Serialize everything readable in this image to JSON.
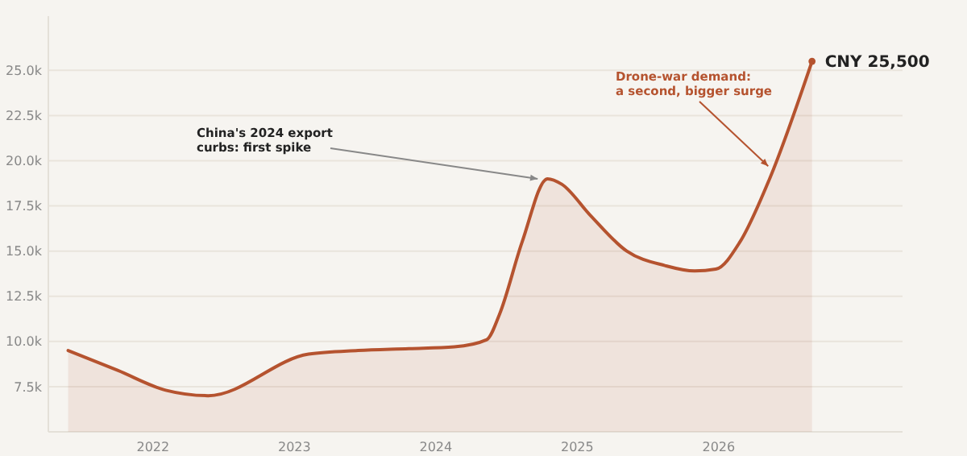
{
  "chart_data": {
    "type": "area",
    "color": "#b5532f",
    "x": [
      2021.4,
      2021.75,
      2022.09,
      2022.39,
      2023.1,
      2023.45,
      2023.81,
      2024.13,
      2024.36,
      2024.45,
      2024.61,
      2024.79,
      2024.89,
      2025.09,
      2025.35,
      2025.62,
      2025.83,
      2025.98,
      2026.15,
      2026.36,
      2026.66
    ],
    "values": [
      9500,
      8400,
      7300,
      7000,
      9300,
      9500,
      9600,
      9700,
      10100,
      11500,
      15500,
      19000,
      18700,
      17000,
      15000,
      14200,
      13900,
      14000,
      15500,
      19000,
      25500
    ],
    "xlim": [
      2021.26,
      2027.3
    ],
    "xticks": [
      2022,
      2023,
      2024,
      2025,
      2026
    ],
    "ylim": [
      5000,
      28000
    ],
    "yticks": [
      {
        "value": 7500,
        "label": "7.5k"
      },
      {
        "value": 10000,
        "label": "10.0k"
      },
      {
        "value": 12500,
        "label": "12.5k"
      },
      {
        "value": 15000,
        "label": "15.0k"
      },
      {
        "value": 17500,
        "label": "17.5k"
      },
      {
        "value": 20000,
        "label": "20.0k"
      },
      {
        "value": 22500,
        "label": "22.5k"
      },
      {
        "value": 25000,
        "label": "25.0k"
      }
    ],
    "grid": "y",
    "annotations": [
      {
        "text": "China's 2024 export\ncurbs: first spike",
        "x": 2024.72,
        "y": 19000
      },
      {
        "text": "Drone-war demand:\na second, bigger surge",
        "x": 2026.35,
        "y": 19700
      },
      {
        "text": "CNY 25,500",
        "x": 2026.66,
        "y": 25500
      }
    ]
  }
}
